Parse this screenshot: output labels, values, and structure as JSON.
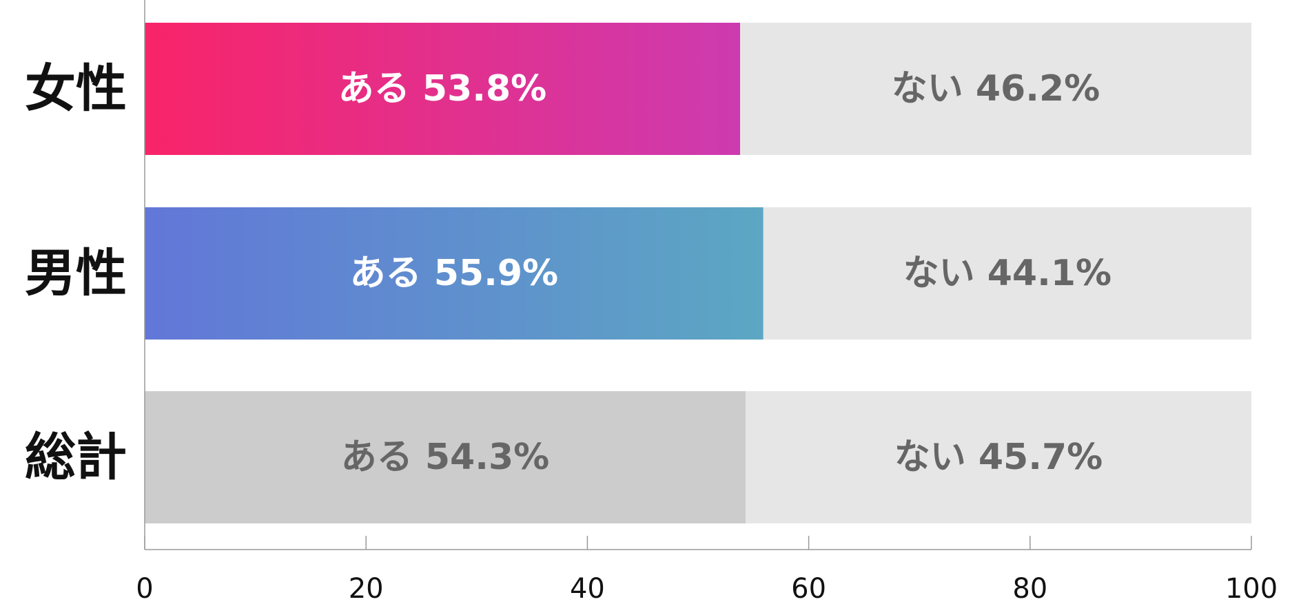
{
  "chart_data": {
    "type": "bar",
    "orientation": "horizontal",
    "stacked": true,
    "categories": [
      "女性",
      "男性",
      "総計"
    ],
    "series": [
      {
        "values": [
          53.8,
          55.9,
          54.3
        ],
        "labels": [
          "ある 53.8%",
          "ある 55.9%",
          "ある 54.3%"
        ]
      },
      {
        "values": [
          46.2,
          44.1,
          45.7
        ],
        "labels": [
          "ない 46.2%",
          "ない 44.1%",
          "ない 45.7%"
        ]
      }
    ],
    "bar_colors": [
      {
        "from": "#f82469",
        "to": "#cd3bb0"
      },
      {
        "from": "#6277d8",
        "to": "#5ca7c3"
      },
      {
        "from": "#cccccc",
        "to": "#cccccc"
      }
    ],
    "remainder_color": "#e6e6e6",
    "label_colors": [
      "#ffffff",
      "#ffffff",
      "#666666"
    ],
    "remainder_label_color": "#666666",
    "xlim": [
      0,
      100
    ],
    "xticks": [
      0,
      20,
      40,
      60,
      80,
      100
    ],
    "xtick_labels": [
      "0",
      "20",
      "40",
      "60",
      "80",
      "100"
    ],
    "grid": false,
    "title": "",
    "xlabel": "",
    "ylabel": ""
  }
}
